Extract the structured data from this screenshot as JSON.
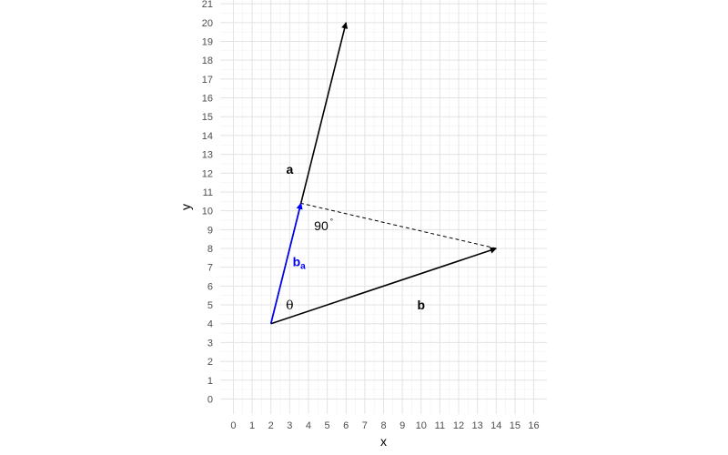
{
  "chart_data": {
    "type": "vector-diagram",
    "xlabel": "x",
    "ylabel": "y",
    "xlim": [
      -0.7,
      16.7
    ],
    "ylim": [
      -0.8,
      21.2
    ],
    "xticks": [
      0,
      1,
      2,
      3,
      4,
      5,
      6,
      7,
      8,
      9,
      10,
      11,
      12,
      13,
      14,
      15,
      16
    ],
    "yticks": [
      0,
      1,
      2,
      3,
      4,
      5,
      6,
      7,
      8,
      9,
      10,
      11,
      12,
      13,
      14,
      15,
      16,
      17,
      18,
      19,
      20,
      21
    ],
    "grid": true,
    "origin": [
      2,
      4
    ],
    "vectors": [
      {
        "name": "a",
        "from": [
          2,
          4
        ],
        "to": [
          6,
          20
        ],
        "color": "#000000"
      },
      {
        "name": "b",
        "from": [
          2,
          4
        ],
        "to": [
          14,
          8
        ],
        "color": "#000000"
      },
      {
        "name": "b_a",
        "from": [
          2,
          4
        ],
        "to": [
          3.6,
          10.4
        ],
        "color": "#0000ff"
      }
    ],
    "projection_line": {
      "from": [
        14,
        8
      ],
      "to": [
        3.6,
        10.4
      ],
      "style": "dashed"
    },
    "labels": [
      {
        "key": "a",
        "text": "a",
        "at": [
          3,
          12.2
        ],
        "color": "#000000"
      },
      {
        "key": "b",
        "text": "b",
        "at": [
          10,
          5
        ],
        "color": "#000000"
      },
      {
        "key": "ba",
        "text": "b",
        "subscript": "a",
        "at": [
          3.5,
          7.3
        ],
        "color": "#0000ff"
      },
      {
        "key": "theta",
        "text": "θ",
        "at": [
          3,
          5
        ],
        "color": "#000000"
      },
      {
        "key": "right_angle",
        "text": "90",
        "superscript": "°",
        "at": [
          4.3,
          9.2
        ],
        "color": "#000000"
      }
    ]
  }
}
